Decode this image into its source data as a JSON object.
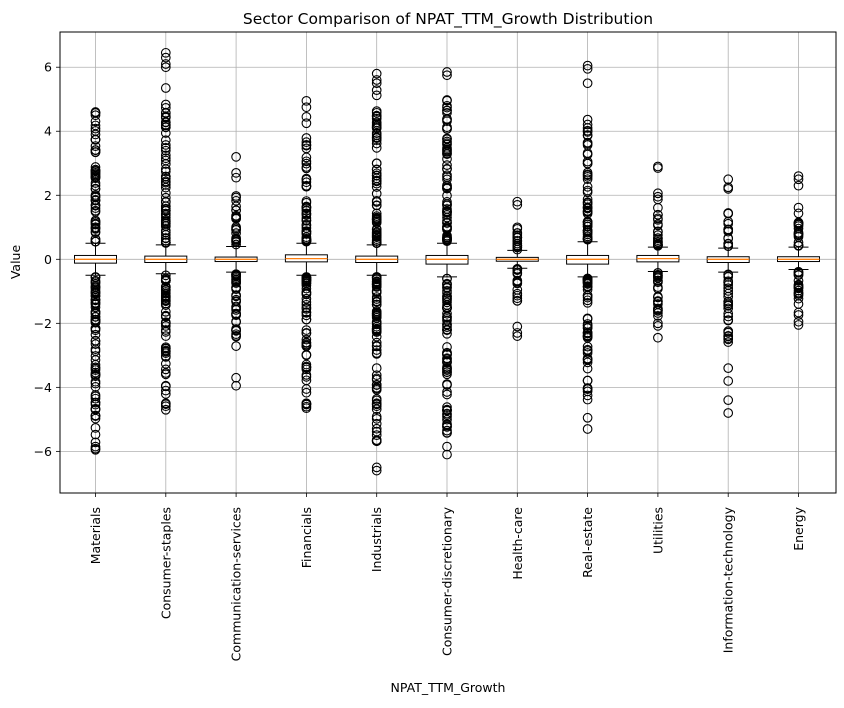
{
  "chart_data": {
    "type": "boxplot",
    "title": "Sector Comparison of NPAT_TTM_Growth Distribution",
    "xlabel": "NPAT_TTM_Growth",
    "ylabel": "Value",
    "ylim": [
      -7.3,
      7.1
    ],
    "yticks": [
      -6,
      -4,
      -2,
      0,
      2,
      4,
      6
    ],
    "ytick_labels": [
      "−6",
      "−4",
      "−2",
      "0",
      "2",
      "4",
      "6"
    ],
    "grid": true,
    "colors": {
      "box_edge": "#000000",
      "median": "#ff7f0e",
      "grid": "#b0b0b0",
      "flier": "#000000"
    },
    "categories": [
      "Materials",
      "Consumer-staples",
      "Communication-services",
      "Financials",
      "Industrials",
      "Consumer-discretionary",
      "Health-care",
      "Real-estate",
      "Utilities",
      "Information-technology",
      "Energy"
    ],
    "boxes": [
      {
        "whislo": -0.5,
        "q1": -0.12,
        "med": 0.0,
        "q3": 0.12,
        "whishi": 0.5,
        "flier_range": [
          [
            -5.95,
            -0.55
          ],
          [
            0.55,
            4.6
          ]
        ],
        "extra_fliers": [
          4.6,
          4.5,
          3.9,
          -5.95,
          -5.85
        ]
      },
      {
        "whislo": -0.45,
        "q1": -0.1,
        "med": 0.0,
        "q3": 0.1,
        "whishi": 0.45,
        "flier_range": [
          [
            -4.7,
            -0.5
          ],
          [
            0.5,
            4.9
          ]
        ],
        "extra_fliers": [
          6.45,
          6.3,
          6.1,
          6.0,
          5.35,
          -4.7,
          -4.1,
          -3.95
        ]
      },
      {
        "whislo": -0.4,
        "q1": -0.07,
        "med": 0.0,
        "q3": 0.07,
        "whishi": 0.4,
        "flier_range": [
          [
            -3.1,
            -0.45
          ],
          [
            0.45,
            2.0
          ]
        ],
        "extra_fliers": [
          3.2,
          2.7,
          2.55,
          -3.7,
          -3.95
        ]
      },
      {
        "whislo": -0.5,
        "q1": -0.08,
        "med": 0.02,
        "q3": 0.14,
        "whishi": 0.5,
        "flier_range": [
          [
            -4.65,
            -0.55
          ],
          [
            0.55,
            4.0
          ]
        ],
        "extra_fliers": [
          4.95,
          4.75,
          4.45,
          4.25,
          -4.65,
          -4.5
        ]
      },
      {
        "whislo": -0.5,
        "q1": -0.1,
        "med": 0.0,
        "q3": 0.1,
        "whishi": 0.45,
        "flier_range": [
          [
            -6.0,
            -0.55
          ],
          [
            0.5,
            5.3
          ]
        ],
        "extra_fliers": [
          5.8,
          5.6,
          5.5,
          -6.5,
          -6.6
        ]
      },
      {
        "whislo": -0.55,
        "q1": -0.15,
        "med": 0.0,
        "q3": 0.12,
        "whishi": 0.5,
        "flier_range": [
          [
            -5.5,
            -0.6
          ],
          [
            0.55,
            5.2
          ]
        ],
        "extra_fliers": [
          5.85,
          5.75,
          -5.85,
          -6.1
        ]
      },
      {
        "whislo": -0.28,
        "q1": -0.06,
        "med": 0.0,
        "q3": 0.06,
        "whishi": 0.28,
        "flier_range": [
          [
            -1.5,
            -0.3
          ],
          [
            0.3,
            1.5
          ]
        ],
        "extra_fliers": [
          1.8,
          1.7,
          -2.1,
          -2.3,
          -2.4
        ]
      },
      {
        "whislo": -0.55,
        "q1": -0.15,
        "med": 0.0,
        "q3": 0.12,
        "whishi": 0.55,
        "flier_range": [
          [
            -4.8,
            -0.6
          ],
          [
            0.6,
            4.5
          ]
        ],
        "extra_fliers": [
          6.05,
          5.95,
          5.5,
          -5.3,
          -4.95
        ]
      },
      {
        "whislo": -0.38,
        "q1": -0.08,
        "med": 0.02,
        "q3": 0.12,
        "whishi": 0.38,
        "flier_range": [
          [
            -2.2,
            -0.42
          ],
          [
            0.42,
            2.3
          ]
        ],
        "extra_fliers": [
          2.9,
          2.85,
          -2.45
        ]
      },
      {
        "whislo": -0.4,
        "q1": -0.1,
        "med": 0.0,
        "q3": 0.08,
        "whishi": 0.35,
        "flier_range": [
          [
            -2.6,
            -0.45
          ],
          [
            0.4,
            1.5
          ]
        ],
        "extra_fliers": [
          2.5,
          2.25,
          2.2,
          -3.4,
          -3.8,
          -4.4,
          -4.8
        ]
      },
      {
        "whislo": -0.32,
        "q1": -0.07,
        "med": 0.0,
        "q3": 0.08,
        "whishi": 0.38,
        "flier_range": [
          [
            -1.8,
            -0.38
          ],
          [
            0.42,
            1.8
          ]
        ],
        "extra_fliers": [
          2.6,
          2.5,
          2.3,
          -1.95,
          -2.05
        ]
      }
    ]
  }
}
